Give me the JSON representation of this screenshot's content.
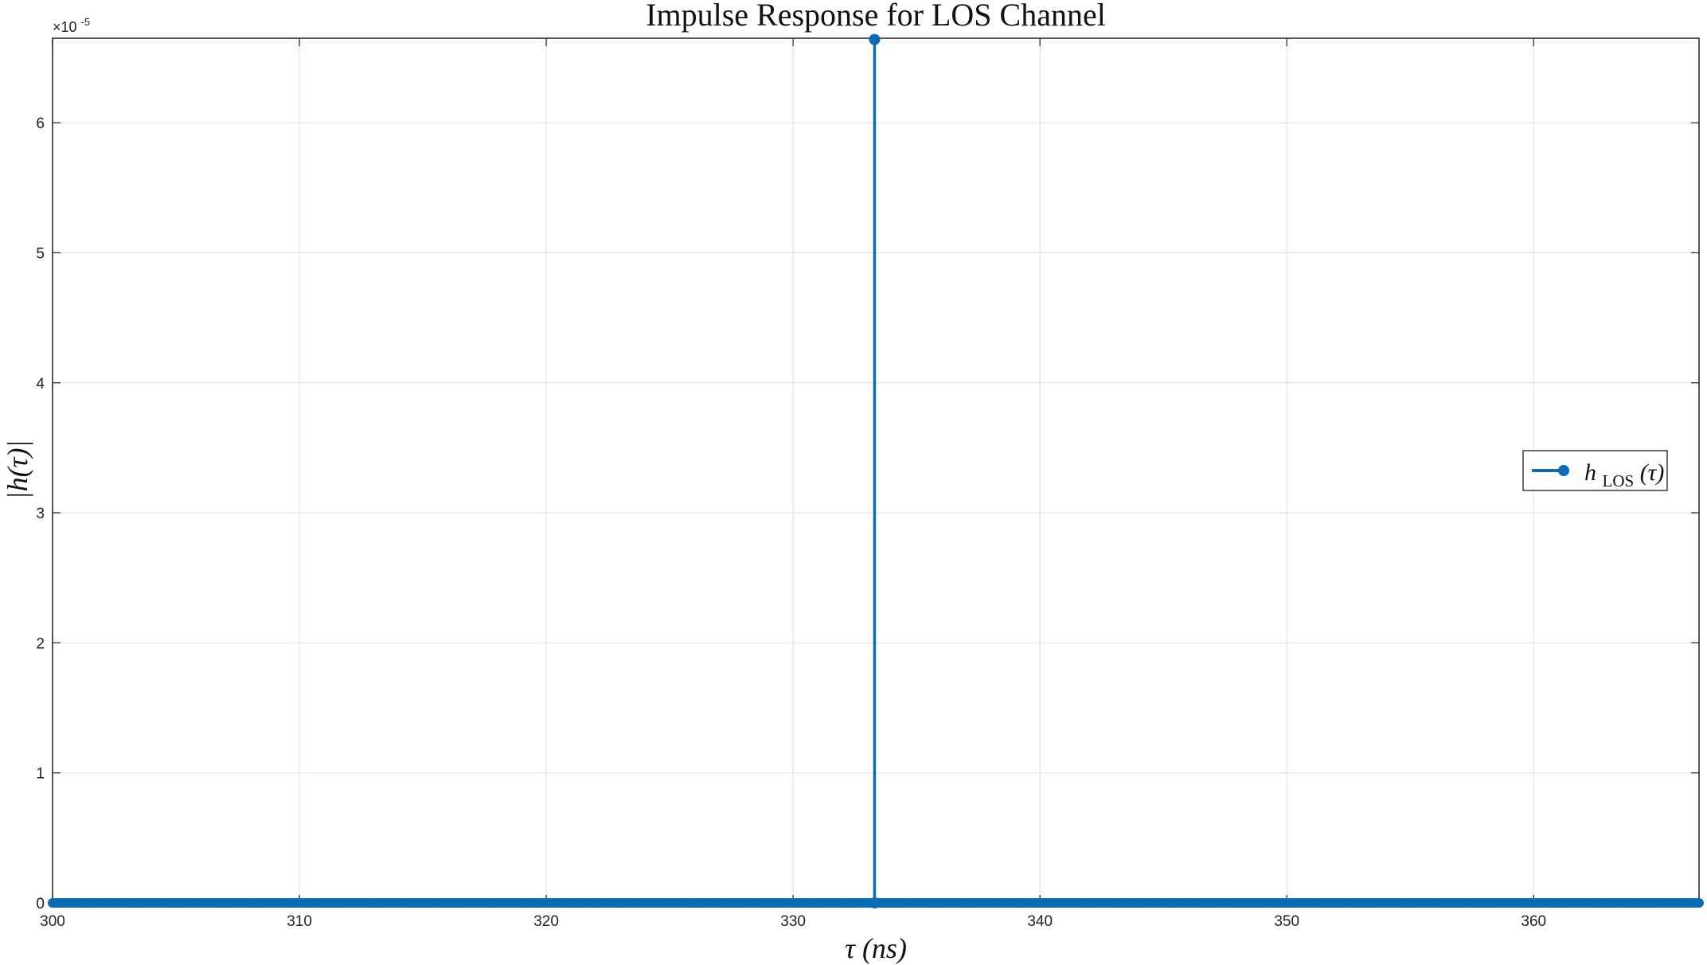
{
  "chart_data": {
    "type": "stem",
    "title": "Impulse Response for LOS Channel",
    "xlabel": "τ (ns)",
    "ylabel": "|h(τ)|",
    "y_exponent_label": "×10",
    "y_exponent_power": "-5",
    "xlim": [
      300,
      366.7
    ],
    "ylim": [
      0,
      6.65
    ],
    "x_ticks": [
      300,
      310,
      320,
      330,
      340,
      350,
      360
    ],
    "y_ticks": [
      0,
      1,
      2,
      3,
      4,
      5,
      6
    ],
    "grid": true,
    "legend_position": "right",
    "series": [
      {
        "name": "hLOS(τ)",
        "color": "#0b6bb5",
        "baseline_range": [
          300,
          366.7
        ],
        "baseline_value": 0,
        "sample_step": 0.1,
        "impulse": {
          "x": 333.3,
          "y": 6.64
        }
      }
    ],
    "legend": {
      "italic_main": "h",
      "subscript": "LOS",
      "argument": "(τ)"
    }
  }
}
